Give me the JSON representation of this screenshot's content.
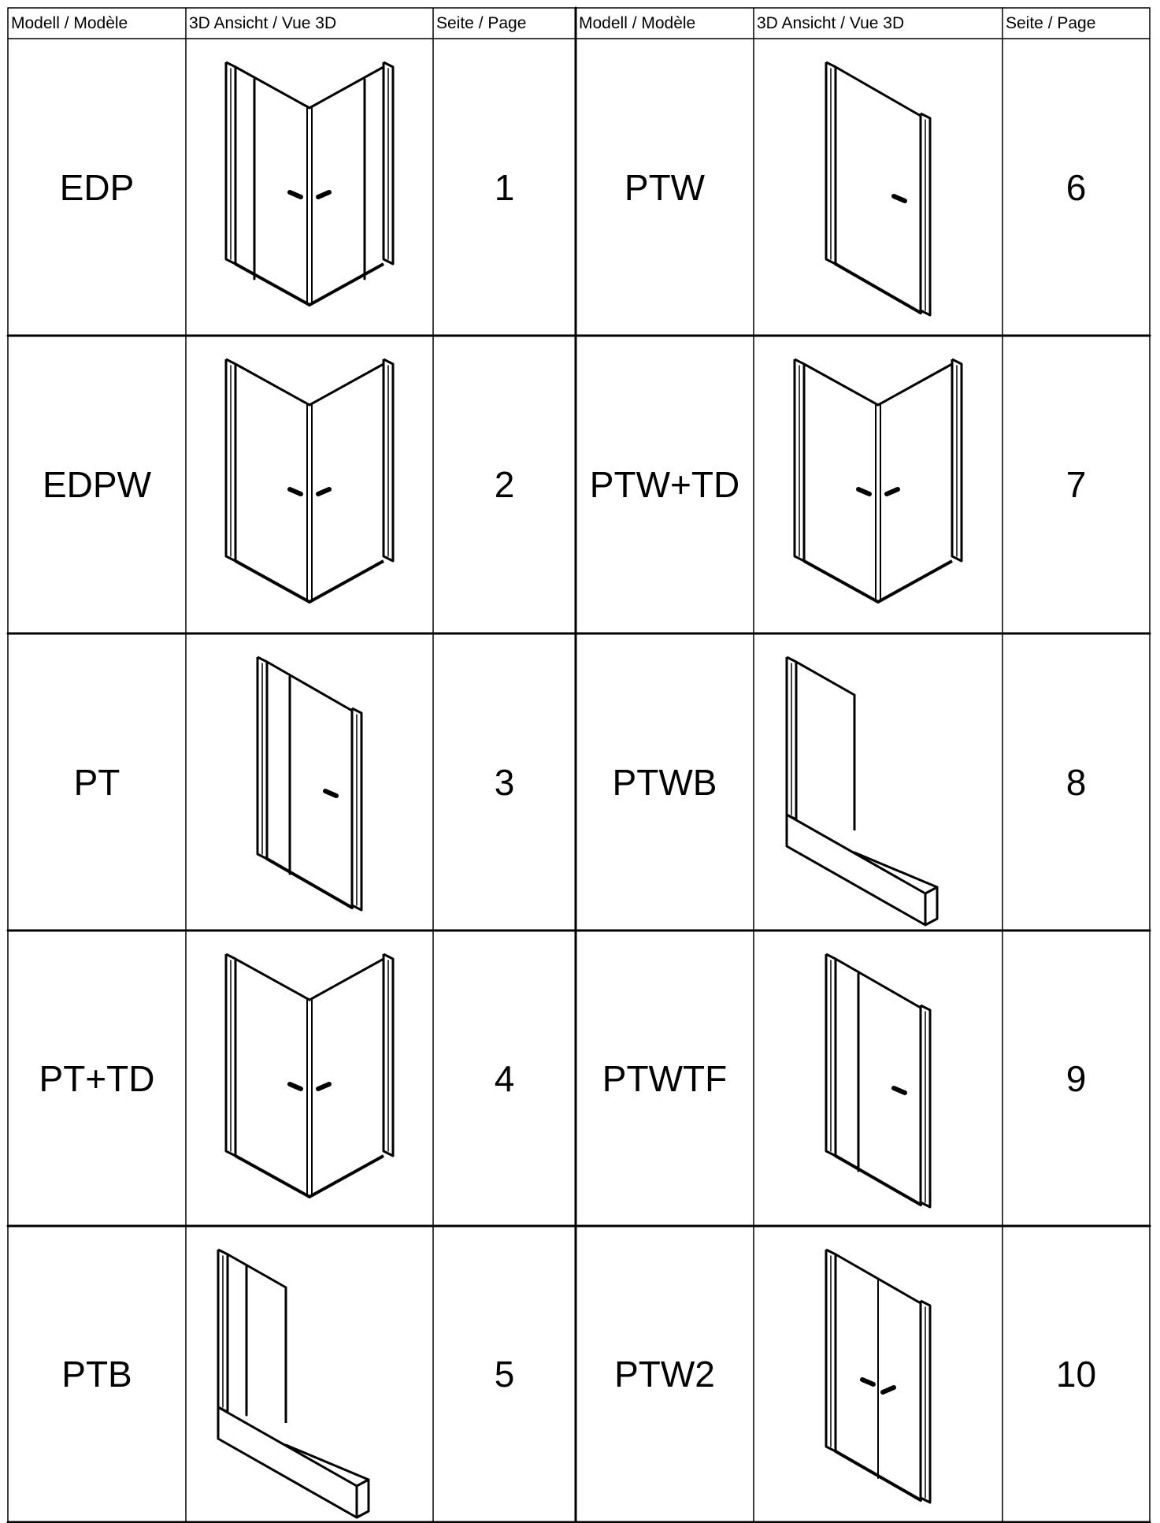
{
  "table": {
    "headers": [
      "Modell / Modèle",
      "3D Ansicht / Vue 3D",
      "Seite / Page",
      "Modell / Modèle",
      "3D Ansicht / Vue 3D",
      "Seite / Page"
    ],
    "rows": [
      {
        "left": {
          "model": "EDP",
          "page": 1
        },
        "right": {
          "model": "PTW",
          "page": 6
        }
      },
      {
        "left": {
          "model": "EDPW",
          "page": 2
        },
        "right": {
          "model": "PTW+TD",
          "page": 7
        }
      },
      {
        "left": {
          "model": "PT",
          "page": 3
        },
        "right": {
          "model": "PTWB",
          "page": 8
        }
      },
      {
        "left": {
          "model": "PT+TD",
          "page": 4
        },
        "right": {
          "model": "PTWTF",
          "page": 9
        }
      },
      {
        "left": {
          "model": "PTB",
          "page": 5
        },
        "right": {
          "model": "PTW2",
          "page": 10
        }
      }
    ]
  }
}
